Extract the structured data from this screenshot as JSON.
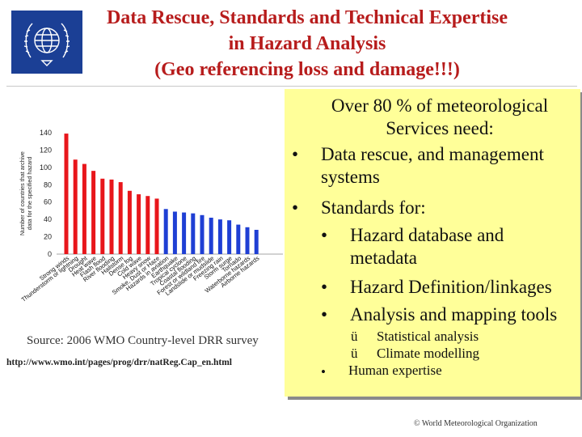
{
  "slide": {
    "title_line1": "Data Rescue, Standards and Technical Expertise",
    "title_line2": "in Hazard Analysis",
    "title_line3": "(Geo referencing loss and damage!!!)",
    "source": "Source: 2006 WMO Country-level DRR survey",
    "url": "http://www.wmo.int/pages/prog/drr/natReg.Cap_en.html",
    "copyright": "© World Meteorological Organization",
    "logo_icon": "wmo-emblem-icon"
  },
  "box": {
    "heading_line1": "Over 80 % of meteorological",
    "heading_line2": "Services need:",
    "bullet": "•",
    "check": "ü",
    "item1_line1": "Data rescue, and management",
    "item1_line2": "systems",
    "item2": "Standards for:",
    "sub1_line1": "Hazard database and",
    "sub1_line2": "metadata",
    "sub2": "Hazard  Definition/linkages",
    "sub3": "Analysis and mapping tools",
    "check1": "Statistical analysis",
    "check2": "Climate modelling",
    "item3": "Human expertise",
    "background": "#ffff99"
  },
  "chart_data": {
    "type": "bar",
    "ylabel": "Number of countries that archive data for the specified hazard",
    "ylim": [
      0,
      140
    ],
    "yticks": [
      0,
      20,
      40,
      60,
      80,
      100,
      120,
      140
    ],
    "categories": [
      "Strong winds",
      "Thunderstorm or lightning",
      "Drought",
      "Heat wave",
      "Flash flood",
      "River flooding",
      "Hailstorm",
      "Dense fog",
      "Cold wave",
      "Heavy snow",
      "Smoke, Dust or Haze",
      "Hazards in aviation",
      "Earthquake",
      "Tropical cyclone",
      "Coastal flooding",
      "Forest or wildland fire",
      "Landslide or mudslide",
      "Freezing rain",
      "Storm surge",
      "Tornado",
      "Waterborne hazards",
      "Airborne hazards"
    ],
    "values": [
      139,
      109,
      104,
      96,
      87,
      86,
      83,
      73,
      69,
      67,
      64,
      52,
      49,
      48,
      47,
      45,
      42,
      40,
      39,
      34,
      31,
      28
    ],
    "colors": [
      "#e8161b",
      "#e8161b",
      "#e8161b",
      "#e8161b",
      "#e8161b",
      "#e8161b",
      "#e8161b",
      "#e8161b",
      "#e8161b",
      "#e8161b",
      "#e8161b",
      "#1f3fd4",
      "#1f3fd4",
      "#1f3fd4",
      "#1f3fd4",
      "#1f3fd4",
      "#1f3fd4",
      "#1f3fd4",
      "#1f3fd4",
      "#1f3fd4",
      "#1f3fd4",
      "#1f3fd4"
    ],
    "grid": false,
    "legend": "none"
  }
}
